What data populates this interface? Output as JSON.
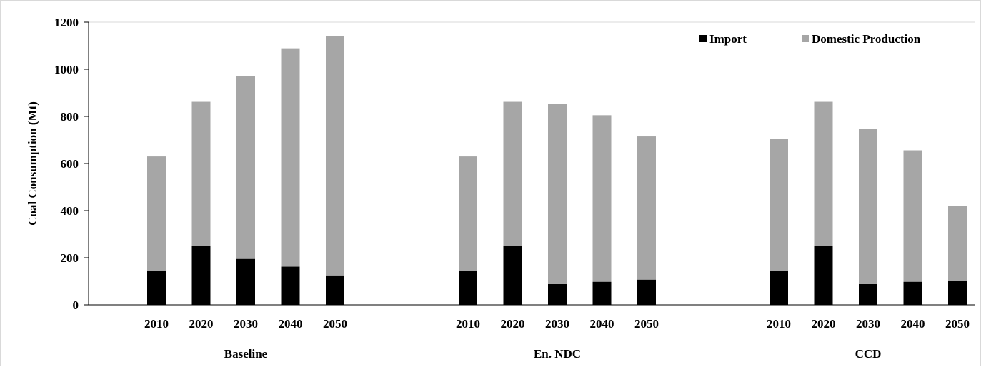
{
  "chart_data": {
    "type": "bar",
    "stacked": true,
    "ylabel": "Coal Consumption (Mt)",
    "ylim": [
      0,
      1200
    ],
    "yticks": [
      0,
      200,
      400,
      600,
      800,
      1000,
      1200
    ],
    "grid": false,
    "legend_position": "top-right",
    "groups": [
      {
        "name": "Baseline",
        "categories": [
          "2010",
          "2020",
          "2030",
          "2040",
          "2050"
        ],
        "import": [
          145,
          250,
          195,
          162,
          125
        ],
        "domestic": [
          485,
          612,
          775,
          927,
          1017
        ]
      },
      {
        "name": "En. NDC",
        "categories": [
          "2010",
          "2020",
          "2030",
          "2040",
          "2050"
        ],
        "import": [
          145,
          250,
          88,
          98,
          107
        ],
        "domestic": [
          485,
          612,
          765,
          707,
          608
        ]
      },
      {
        "name": "CCD",
        "categories": [
          "2010",
          "2020",
          "2030",
          "2040",
          "2050"
        ],
        "import": [
          145,
          250,
          88,
          98,
          102
        ],
        "domestic": [
          558,
          612,
          660,
          558,
          318
        ]
      }
    ],
    "series": [
      {
        "name": "Import",
        "key": "import",
        "color": "#000000"
      },
      {
        "name": "Domestic Production",
        "key": "domestic",
        "color": "#a6a6a6"
      }
    ]
  }
}
